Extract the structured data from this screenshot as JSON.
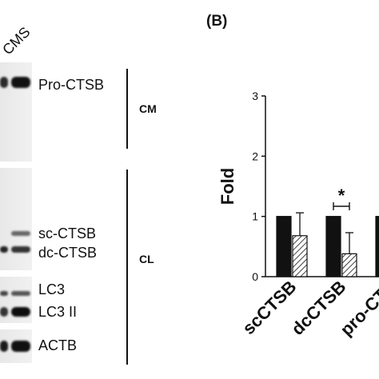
{
  "panel_a": {
    "lane_labels": [
      "S",
      "CMS"
    ],
    "bands": {
      "pro_ctsb": "Pro-CTSB",
      "sc_ctsb": "sc-CTSB",
      "dc_ctsb": "dc-CTSB",
      "lc3": "LC3",
      "lc3_ii": "LC3 II",
      "actb": "ACTB"
    },
    "groups": {
      "cm": "CM",
      "cl": "CL"
    }
  },
  "panel_b": {
    "label": "(B)"
  },
  "chart_data": {
    "type": "bar",
    "title": "",
    "xlabel": "",
    "ylabel": "Fold",
    "ylim": [
      0,
      3
    ],
    "yticks": [
      "0",
      "1",
      "2",
      "3"
    ],
    "categories": [
      "scCTSB",
      "dcCTSB",
      "pro-CTS"
    ],
    "series": [
      {
        "values": [
          1.0,
          1.0,
          1.0
        ],
        "fill": "#111111",
        "pattern": "solid"
      },
      {
        "values": [
          0.68,
          0.38,
          null
        ],
        "errors": [
          0.38,
          0.35,
          null
        ],
        "fill": "#ffffff",
        "pattern": "hatched"
      }
    ],
    "annotations": [
      {
        "text": "*",
        "between": "dcCTSB"
      }
    ]
  }
}
